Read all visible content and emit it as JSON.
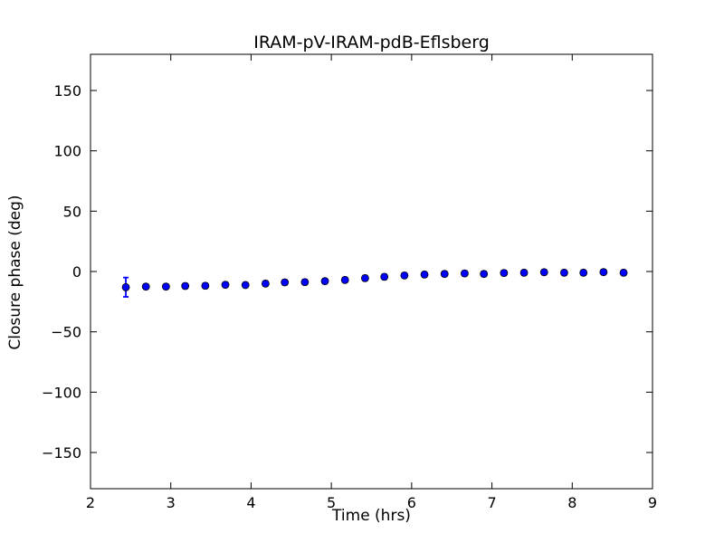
{
  "chart_data": {
    "type": "scatter",
    "title": "IRAM-pV-IRAM-pdB-Eflsberg",
    "xlabel": "Time (hrs)",
    "ylabel": "Closure phase (deg)",
    "xlim": [
      2,
      9
    ],
    "ylim": [
      -180,
      180
    ],
    "x_ticks": [
      2,
      3,
      4,
      5,
      6,
      7,
      8,
      9
    ],
    "x_tick_labels": [
      "2",
      "3",
      "4",
      "5",
      "6",
      "7",
      "8",
      "9"
    ],
    "y_ticks": [
      -150,
      -100,
      -50,
      0,
      50,
      100,
      150
    ],
    "y_tick_labels": [
      "−150",
      "−100",
      "−50",
      "0",
      "50",
      "100",
      "150"
    ],
    "grid": false,
    "legend": null,
    "colors": {
      "marker_fill": "#0000ff",
      "marker_edge": "#000000",
      "errorbar": "#0000ff",
      "frame": "#000000",
      "background": "#ffffff"
    },
    "series": [
      {
        "name": "closure-phase",
        "x": [
          2.44,
          2.69,
          2.94,
          3.18,
          3.43,
          3.68,
          3.93,
          4.18,
          4.42,
          4.67,
          4.92,
          5.17,
          5.42,
          5.66,
          5.91,
          6.16,
          6.41,
          6.66,
          6.9,
          7.15,
          7.4,
          7.65,
          7.9,
          8.14,
          8.39,
          8.64
        ],
        "y": [
          -13,
          -12.5,
          -12.5,
          -12,
          -11.8,
          -11,
          -11.2,
          -10,
          -9,
          -8.8,
          -8,
          -7,
          -5.5,
          -4.4,
          -3.3,
          -2.5,
          -2,
          -1.6,
          -2,
          -1.2,
          -1,
          -0.6,
          -1,
          -1,
          -0.5,
          -1
        ],
        "yerr": [
          8,
          2,
          2,
          2,
          2,
          2,
          2,
          2,
          2,
          2,
          2,
          2,
          2,
          2,
          2,
          2,
          2,
          2,
          2,
          2,
          2,
          2,
          2,
          2,
          2,
          2
        ]
      }
    ]
  }
}
